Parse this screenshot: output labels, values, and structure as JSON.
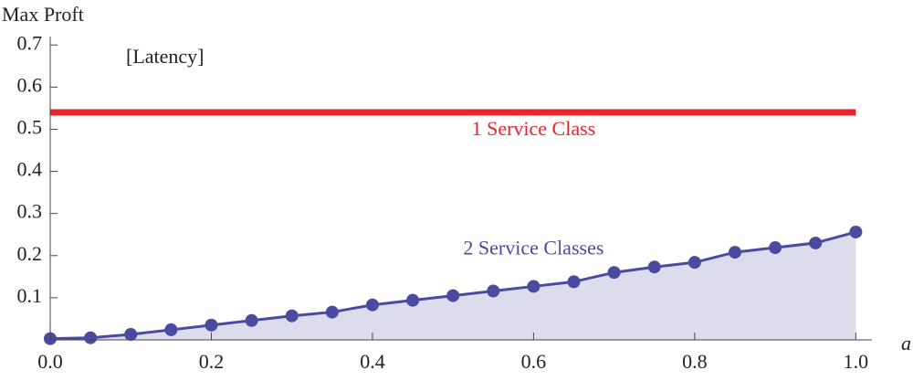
{
  "chart_data": {
    "type": "line",
    "title": "Max Proft",
    "annotation": "[Latency]",
    "x_label": "a",
    "xlim": [
      0,
      1.02
    ],
    "ylim": [
      0,
      0.72
    ],
    "xticks": [
      {
        "value": 0,
        "label": "0.0"
      },
      0.2,
      0.4,
      0.6,
      0.8,
      {
        "value": 1,
        "label": "1.0"
      }
    ],
    "yticks": [
      0.1,
      0.2,
      0.3,
      0.4,
      0.5,
      0.6,
      0.7
    ],
    "series": [
      {
        "name": "1 Service Class",
        "color": "#e8232a",
        "x": [
          0,
          1
        ],
        "values": [
          0.54,
          0.54
        ]
      },
      {
        "name": "2 Service Classes",
        "color": "#4a4aa0",
        "fill": "#dcdcec",
        "x": [
          0,
          0.05,
          0.1,
          0.15,
          0.2,
          0.25,
          0.3,
          0.35,
          0.4,
          0.45,
          0.5,
          0.55,
          0.6,
          0.65,
          0.7,
          0.75,
          0.8,
          0.85,
          0.9,
          0.95,
          1
        ],
        "values": [
          0.003,
          0.005,
          0.013,
          0.024,
          0.035,
          0.046,
          0.057,
          0.066,
          0.083,
          0.094,
          0.105,
          0.116,
          0.127,
          0.138,
          0.16,
          0.173,
          0.184,
          0.208,
          0.219,
          0.23,
          0.256
        ]
      }
    ]
  }
}
